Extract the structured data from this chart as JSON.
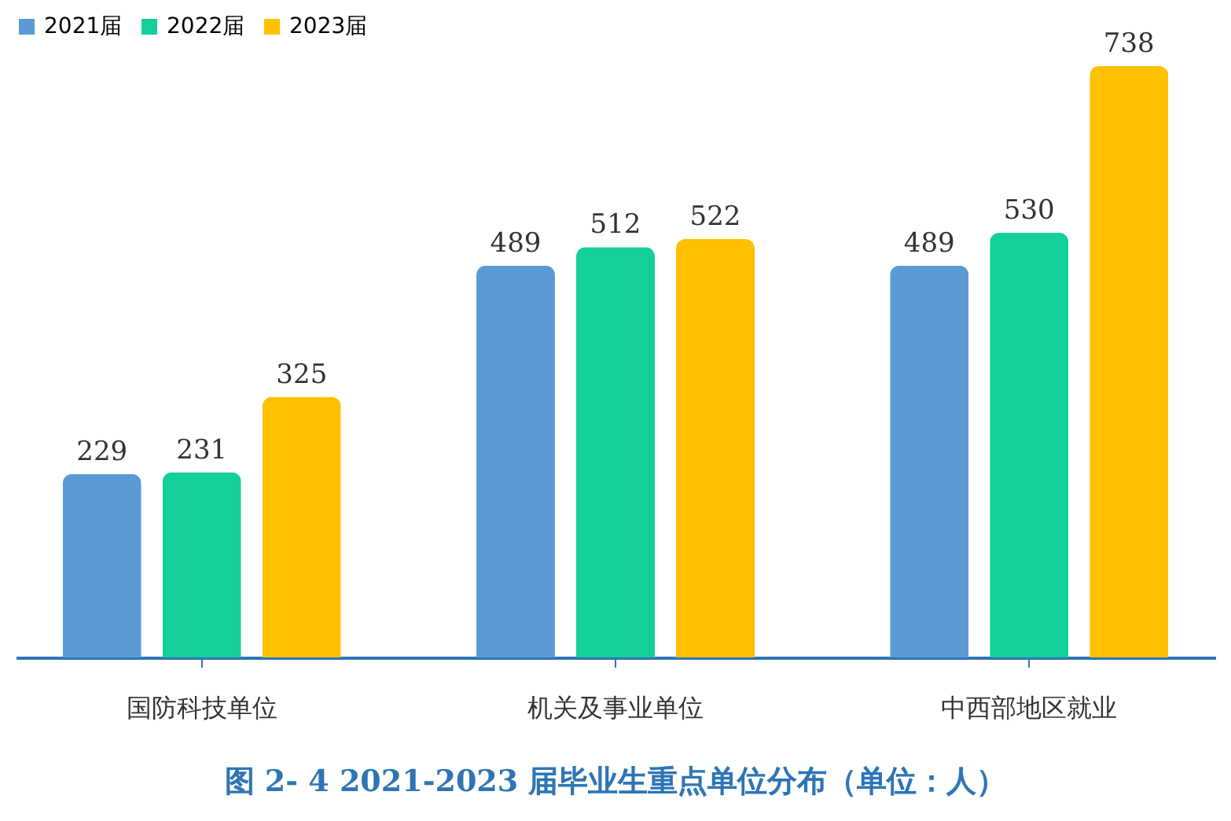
{
  "chart_data": {
    "type": "bar",
    "title": "图 2- 4    2021-2023 届毕业生重点单位分布（单位：人）",
    "categories": [
      "国防科技单位",
      "机关及事业单位",
      "中西部地区就业"
    ],
    "series": [
      {
        "name": "2021届",
        "color": "#5b9bd5",
        "values": [
          229,
          489,
          489
        ]
      },
      {
        "name": "2022届",
        "color": "#13cf9a",
        "values": [
          231,
          512,
          530
        ]
      },
      {
        "name": "2023届",
        "color": "#ffc000",
        "values": [
          325,
          522,
          738
        ]
      }
    ],
    "data_labels": true,
    "legend": "top",
    "grid": false
  }
}
